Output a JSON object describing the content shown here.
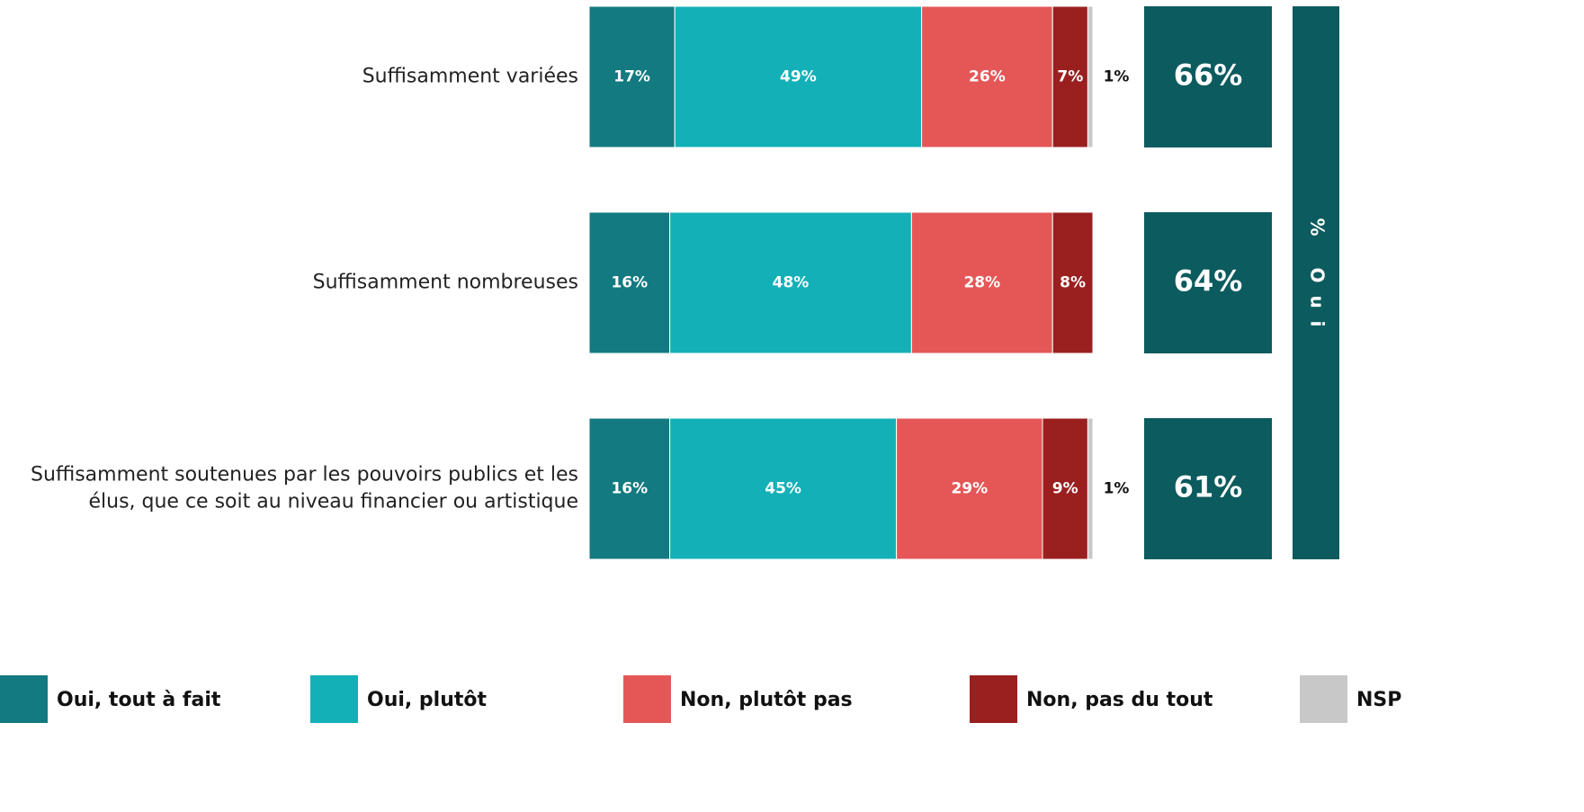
{
  "chart_data": {
    "type": "stacked-bar-horizontal",
    "categories": [
      "Suffisamment variées",
      "Suffisamment nombreuses",
      "Suffisamment soutenues par les pouvoirs publics et les\nélus, que ce soit au niveau financier ou artistique"
    ],
    "series": [
      {
        "name": "Oui, tout à fait",
        "color": "#127a80",
        "values": [
          17,
          16,
          16
        ],
        "value_labels": [
          "17%",
          "16%",
          "16%"
        ]
      },
      {
        "name": "Oui, plutôt",
        "color": "#14b0b8",
        "values": [
          49,
          48,
          45
        ],
        "value_labels": [
          "49%",
          "48%",
          "45%"
        ]
      },
      {
        "name": "Non, plutôt pas",
        "color": "#e55757",
        "values": [
          26,
          28,
          29
        ],
        "value_labels": [
          "26%",
          "28%",
          "29%"
        ]
      },
      {
        "name": "Non, pas du tout",
        "color": "#9a2020",
        "values": [
          7,
          8,
          9
        ],
        "value_labels": [
          "7%",
          "8%",
          "9%"
        ]
      },
      {
        "name": "NSP",
        "color": "#c8c8c8",
        "values": [
          1,
          0,
          1
        ],
        "value_labels": [
          "1%",
          null,
          "1%"
        ]
      }
    ],
    "totals": {
      "name": "% Oui",
      "color": "#0c5b5e",
      "values": [
        66,
        64,
        61
      ],
      "value_labels": [
        "66%",
        "64%",
        "61%"
      ]
    }
  }
}
